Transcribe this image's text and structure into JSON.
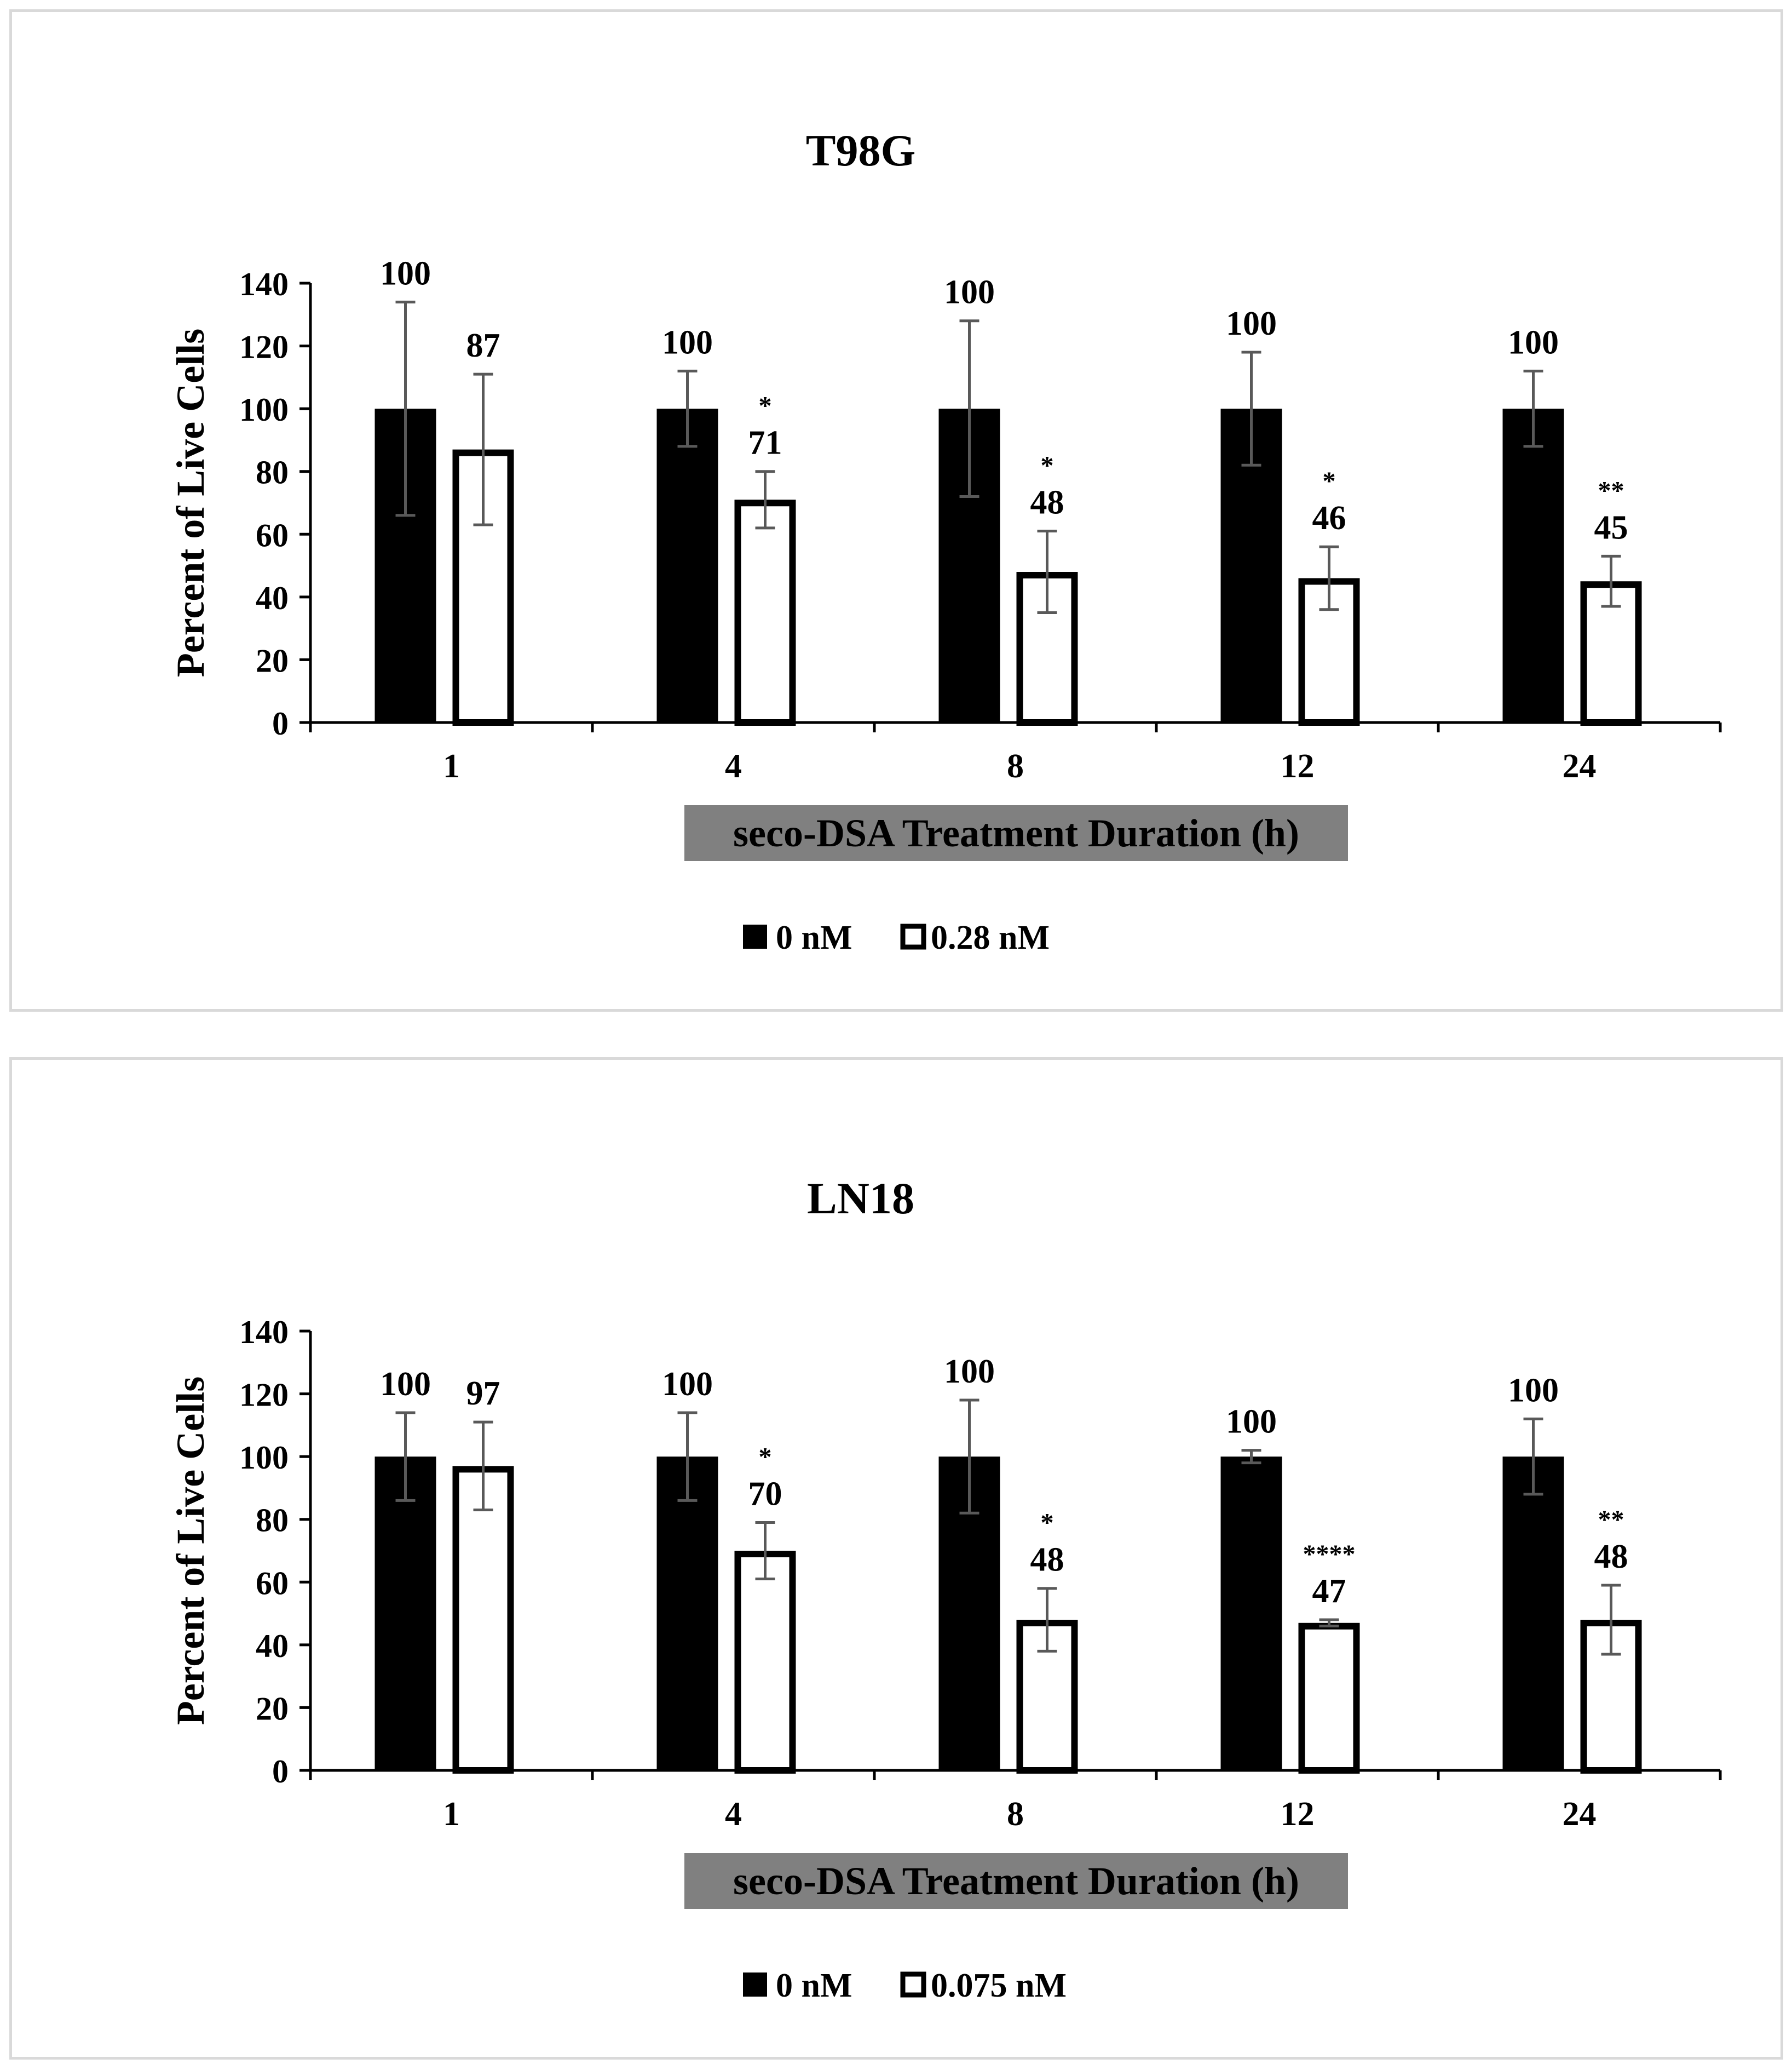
{
  "colors": {
    "series_filled": "#000000",
    "series_hollow": "#ffffff",
    "error_bar": "#595959",
    "xlabel_background": "#808080",
    "panel_border": "#d9d9d9"
  },
  "chart_data": [
    {
      "type": "bar",
      "title": "T98G",
      "xlabel": "seco-DSA Treatment Duration (h)",
      "ylabel": "Percent of Live Cells",
      "ylim": [
        0,
        140
      ],
      "yticks": [
        "0",
        "20",
        "40",
        "60",
        "80",
        "100",
        "120",
        "140"
      ],
      "categories": [
        "1",
        "4",
        "8",
        "12",
        "24"
      ],
      "legend_position": "bottom-center",
      "series": [
        {
          "name": "0 nM",
          "style": "filled",
          "values": [
            100,
            100,
            100,
            100,
            100
          ],
          "errors": [
            34,
            12,
            28,
            18,
            12
          ],
          "labels": [
            "100",
            "100",
            "100",
            "100",
            "100"
          ],
          "significance": [
            "",
            "",
            "",
            "",
            ""
          ]
        },
        {
          "name": "0.28 nM",
          "style": "hollow",
          "values": [
            87,
            71,
            48,
            46,
            45
          ],
          "errors": [
            24,
            9,
            13,
            10,
            8
          ],
          "labels": [
            "87",
            "71",
            "48",
            "46",
            "45"
          ],
          "significance": [
            "",
            "*",
            "*",
            "*",
            "**"
          ]
        }
      ]
    },
    {
      "type": "bar",
      "title": "LN18",
      "xlabel": "seco-DSA Treatment Duration (h)",
      "ylabel": "Percent of Live Cells",
      "ylim": [
        0,
        140
      ],
      "yticks": [
        "0",
        "20",
        "40",
        "60",
        "80",
        "100",
        "120",
        "140"
      ],
      "categories": [
        "1",
        "4",
        "8",
        "12",
        "24"
      ],
      "legend_position": "bottom-center",
      "series": [
        {
          "name": "0 nM",
          "style": "filled",
          "values": [
            100,
            100,
            100,
            100,
            100
          ],
          "errors": [
            14,
            14,
            18,
            2,
            12
          ],
          "labels": [
            "100",
            "100",
            "100",
            "100",
            "100"
          ],
          "significance": [
            "",
            "",
            "",
            "",
            ""
          ]
        },
        {
          "name": "0.075 nM",
          "style": "hollow",
          "values": [
            97,
            70,
            48,
            47,
            48
          ],
          "errors": [
            14,
            9,
            10,
            1,
            11
          ],
          "labels": [
            "97",
            "70",
            "48",
            "47",
            "48"
          ],
          "significance": [
            "",
            "*",
            "*",
            "****",
            "**"
          ]
        }
      ]
    }
  ]
}
